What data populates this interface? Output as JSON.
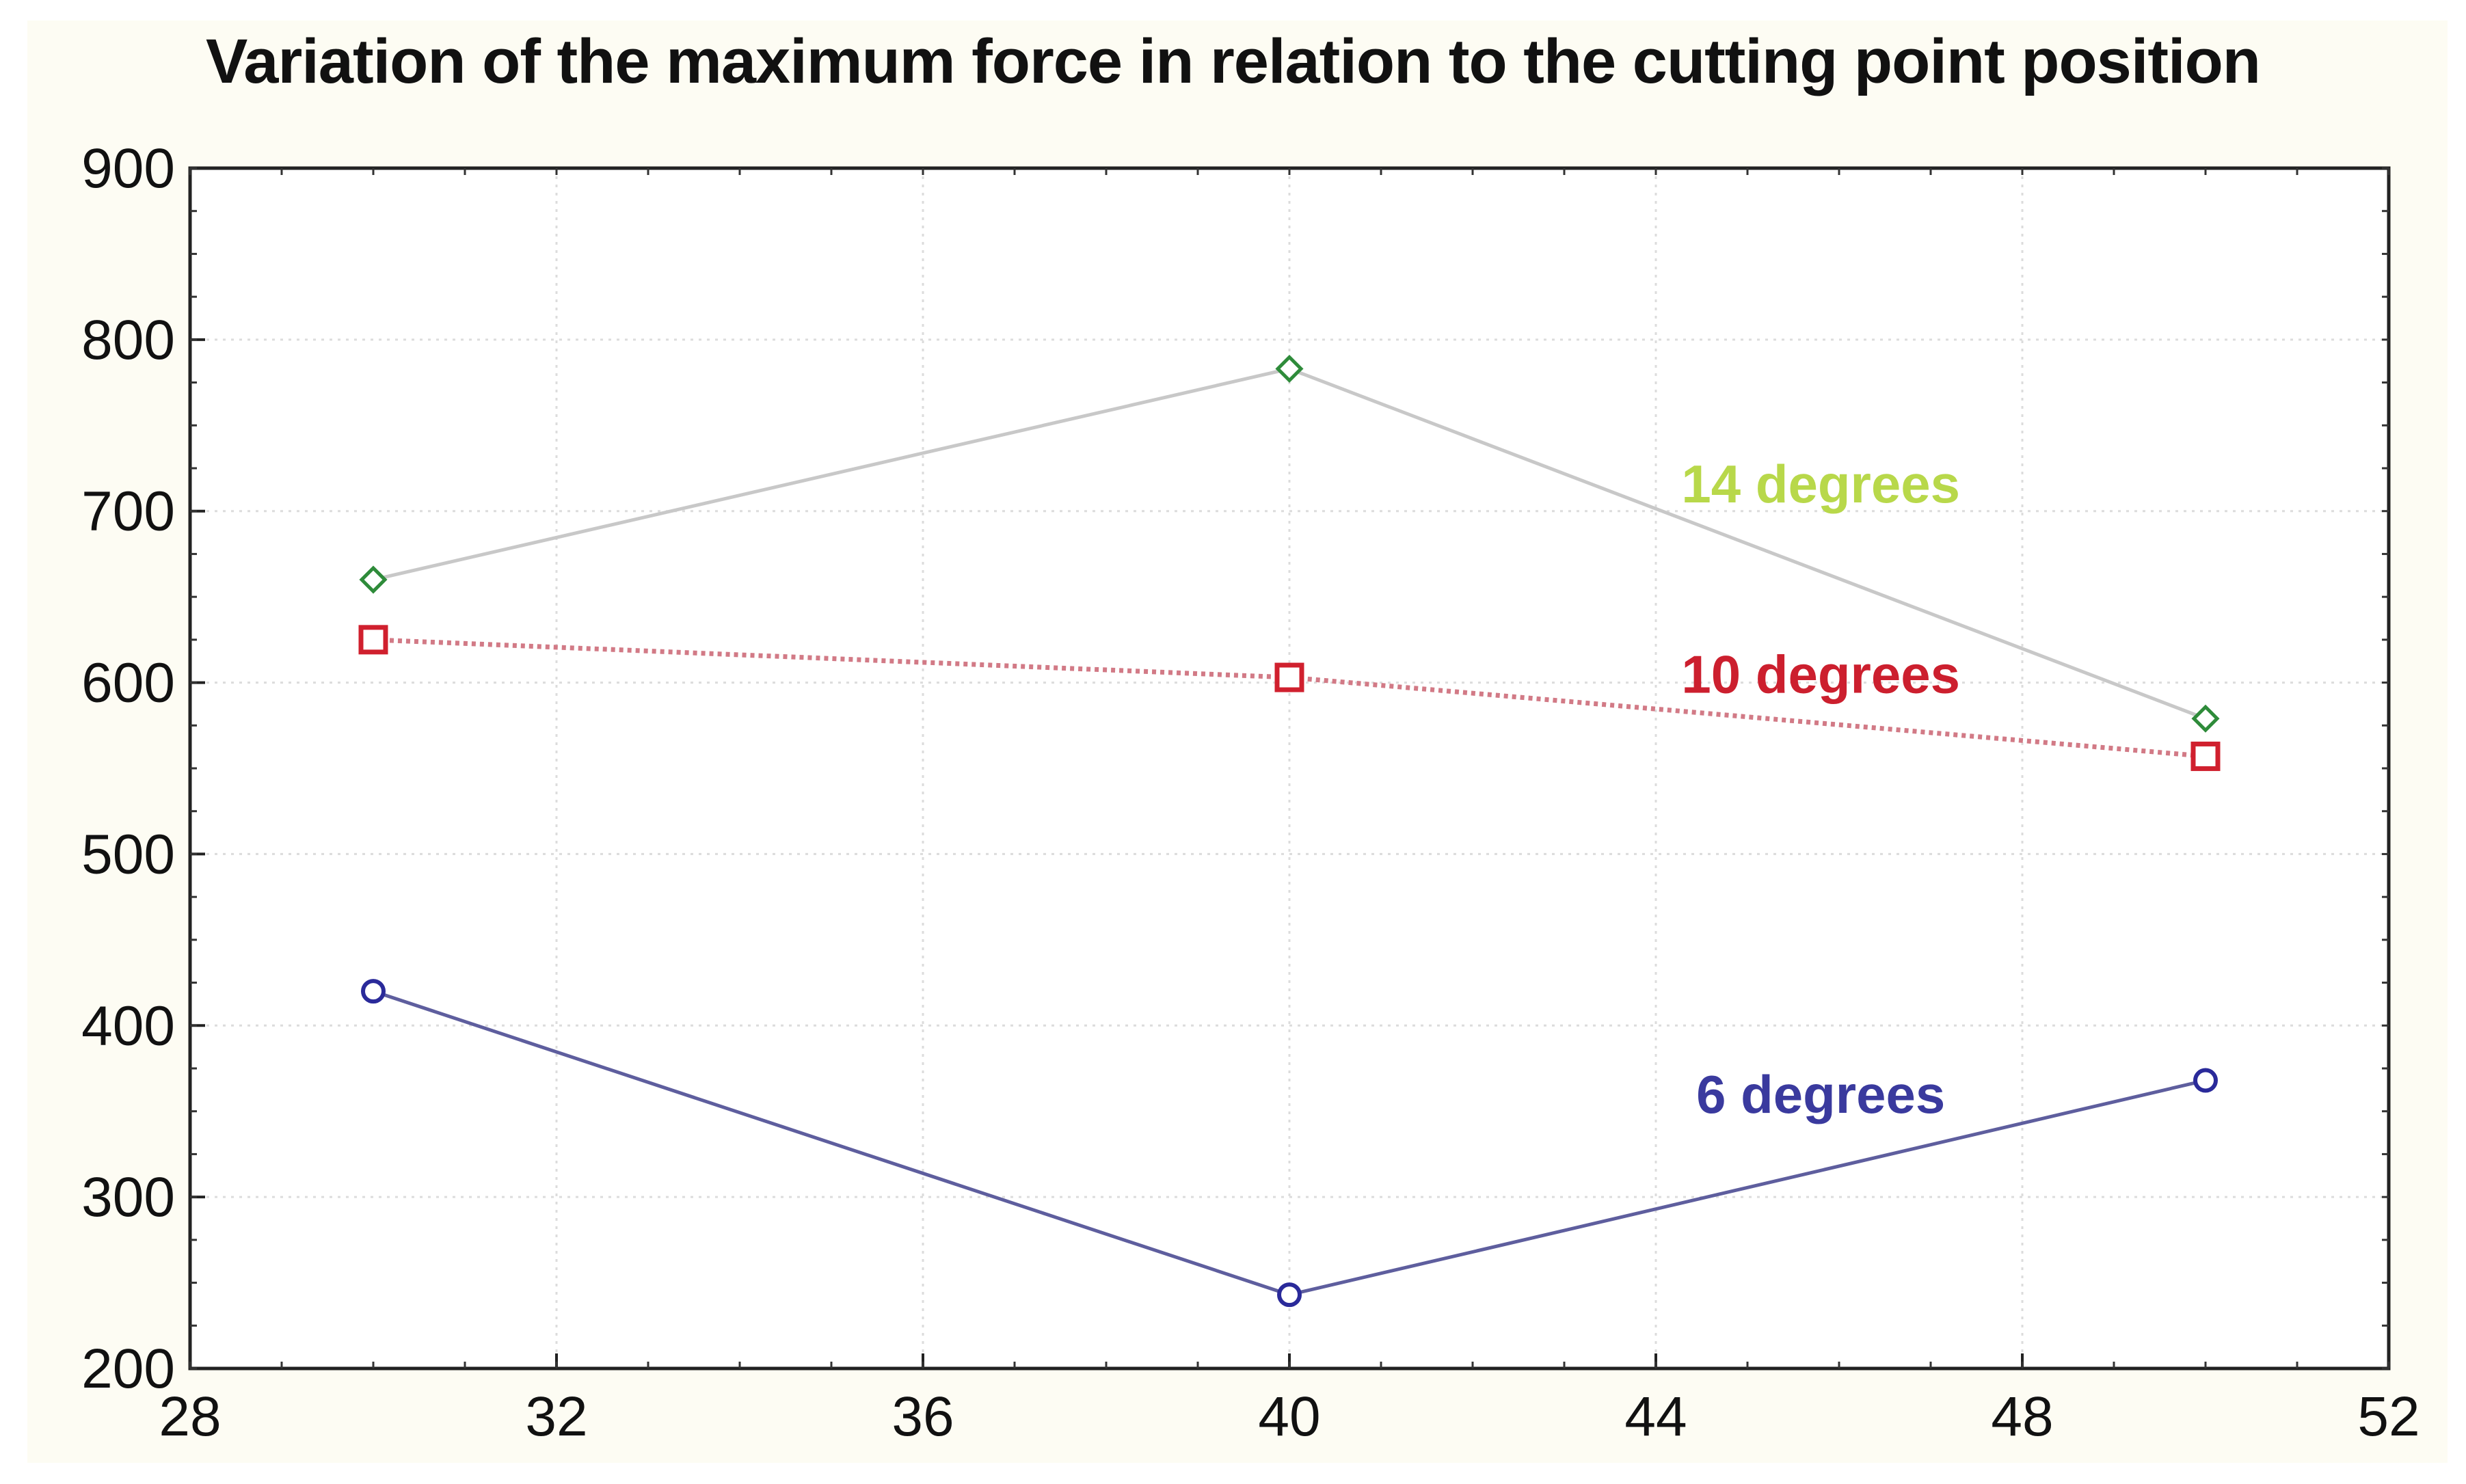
{
  "chart_data": {
    "type": "line",
    "title": "Variation of the maximum force in relation to the cutting point position",
    "xlabel": "",
    "ylabel": "",
    "xlim": [
      28,
      52
    ],
    "ylim": [
      200,
      900
    ],
    "x_ticks": [
      28,
      32,
      36,
      40,
      44,
      48,
      52
    ],
    "y_ticks": [
      200,
      300,
      400,
      500,
      600,
      700,
      800,
      900
    ],
    "grid": true,
    "series": [
      {
        "name": "14 degrees",
        "x": [
          30,
          40,
          50
        ],
        "values": [
          660,
          783,
          579
        ],
        "line_color": "#c8c8c8",
        "marker_color": "#2e8b3a",
        "label_color": "#b8d84a",
        "marker": "diamond",
        "dash": "solid",
        "label_at": [
          45.8,
          705
        ]
      },
      {
        "name": "10 degrees",
        "x": [
          30,
          40,
          50
        ],
        "values": [
          625,
          603,
          557
        ],
        "line_color": "#d27a86",
        "marker_color": "#d0202e",
        "label_color": "#cc1f2e",
        "marker": "square",
        "dash": "dotted",
        "label_at": [
          45.8,
          594
        ]
      },
      {
        "name": "6 degrees",
        "x": [
          30,
          40,
          50
        ],
        "values": [
          420,
          243,
          368
        ],
        "line_color": "#5e5e9e",
        "marker_color": "#2a2a9a",
        "label_color": "#3a3a9e",
        "marker": "circle",
        "dash": "solid",
        "label_at": [
          45.8,
          349
        ]
      }
    ]
  }
}
